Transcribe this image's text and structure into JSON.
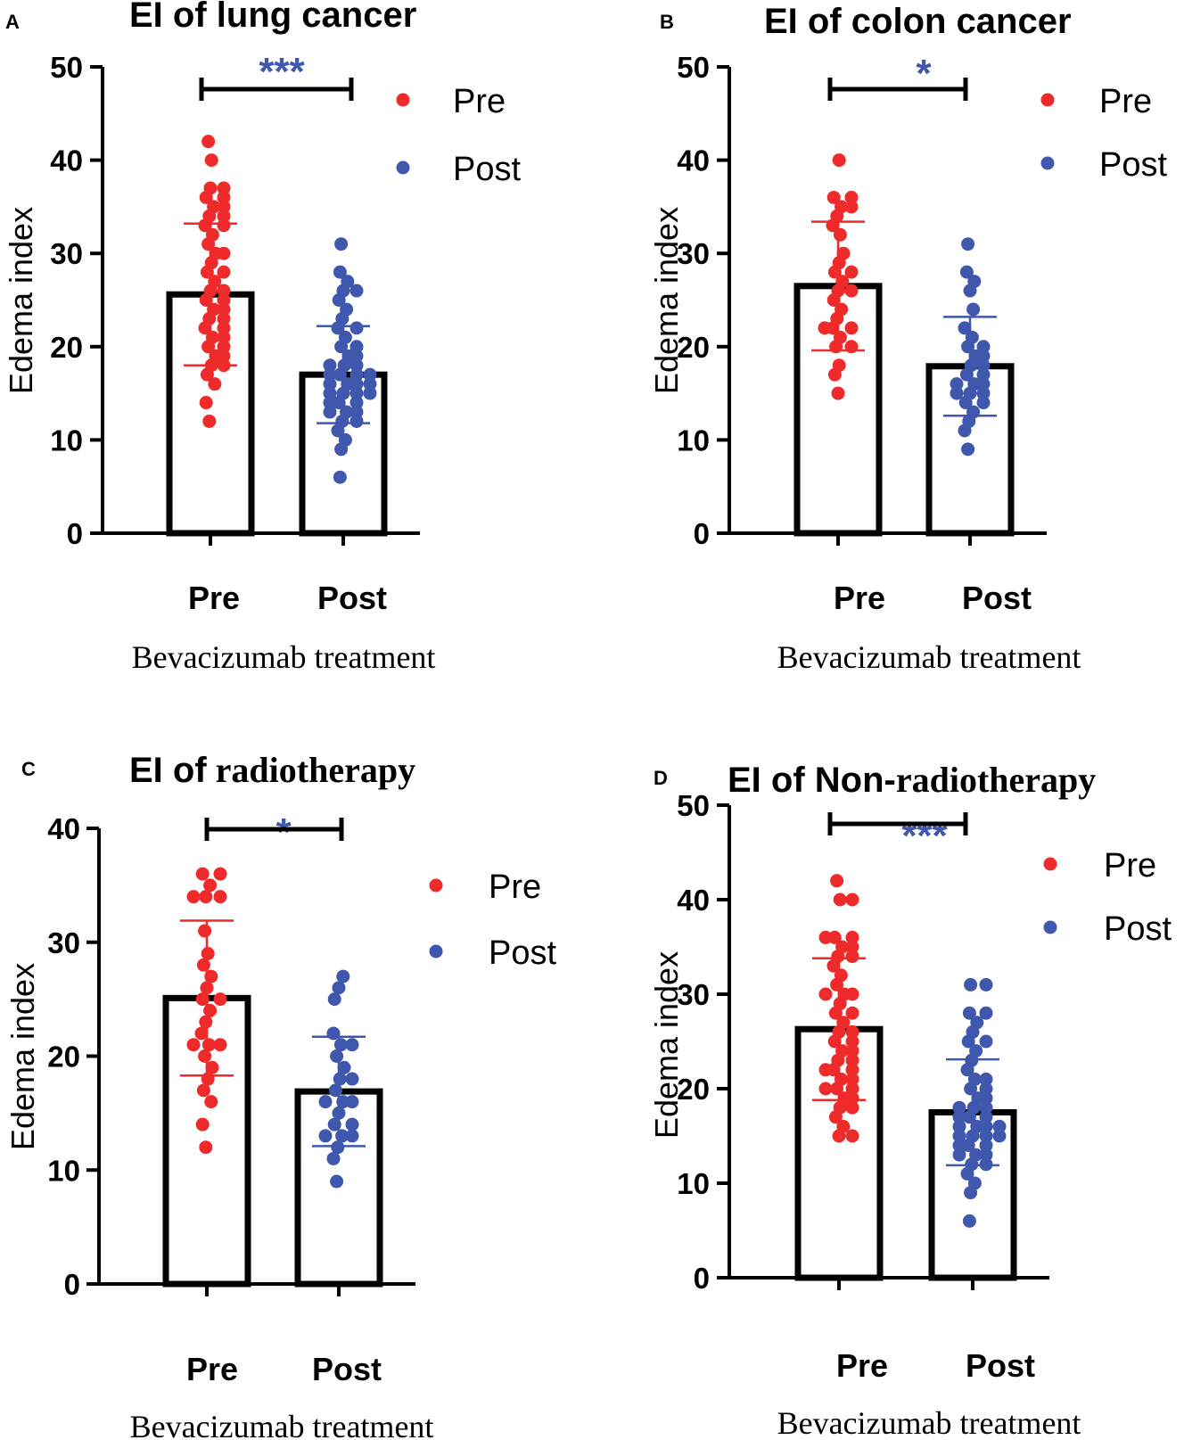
{
  "colors": {
    "pre": "#ee2a2b",
    "post": "#3f57ad",
    "sig": "#3f57ad",
    "axis": "#000000"
  },
  "chart_data": [
    {
      "panel": "A",
      "type": "bar",
      "title": "EI of lung cancer",
      "ylabel": "Edema index",
      "xlabel": "Bevacizumab treatment",
      "ylim": [
        0,
        50
      ],
      "yticks": [
        0,
        10,
        20,
        30,
        40,
        50
      ],
      "categories": [
        "Pre",
        "Post"
      ],
      "means": [
        25.6,
        17.0
      ],
      "sd": [
        7.6,
        5.2
      ],
      "significance": "***",
      "legend": [
        "Pre",
        "Post"
      ],
      "points": [
        [
          42,
          40,
          37,
          37,
          36,
          36,
          35,
          35,
          34,
          34,
          33,
          33,
          32,
          31,
          30,
          30,
          29,
          28,
          28,
          27,
          26,
          26,
          25,
          25,
          24,
          24,
          23,
          23,
          22,
          22,
          21,
          21,
          20,
          20,
          19,
          19,
          18,
          18,
          17,
          16,
          14,
          12
        ],
        [
          31,
          28,
          27,
          26,
          26,
          25,
          24,
          23,
          22,
          22,
          21,
          20,
          20,
          19,
          19,
          18,
          18,
          18,
          17,
          17,
          17,
          17,
          16,
          16,
          16,
          16,
          15,
          15,
          15,
          15,
          14,
          14,
          14,
          13,
          13,
          13,
          12,
          12,
          11,
          10,
          9,
          6
        ]
      ]
    },
    {
      "panel": "B",
      "type": "bar",
      "title": "EI of colon cancer",
      "ylabel": "Edema index",
      "xlabel": "Bevacizumab treatment",
      "ylim": [
        0,
        50
      ],
      "yticks": [
        0,
        10,
        20,
        30,
        40,
        50
      ],
      "categories": [
        "Pre",
        "Post"
      ],
      "means": [
        26.5,
        17.9
      ],
      "sd": [
        6.9,
        5.3
      ],
      "significance": "*",
      "legend": [
        "Pre",
        "Post"
      ],
      "points": [
        [
          40,
          36,
          36,
          35,
          35,
          34,
          33,
          32,
          30,
          29,
          28,
          28,
          27,
          26,
          26,
          25,
          24,
          23,
          22,
          22,
          22,
          21,
          20,
          20,
          18,
          17,
          15
        ],
        [
          31,
          28,
          27,
          26,
          24,
          22,
          21,
          20,
          20,
          19,
          19,
          18,
          18,
          17,
          17,
          16,
          16,
          16,
          15,
          15,
          15,
          14,
          14,
          13,
          12,
          11,
          9
        ]
      ]
    },
    {
      "panel": "C",
      "type": "bar",
      "title_prefix": "EI of",
      "title_suffix": "radiotherapy",
      "ylabel": "Edema index",
      "xlabel": "Bevacizumab treatment",
      "ylim": [
        0,
        40
      ],
      "yticks": [
        0,
        10,
        20,
        30,
        40
      ],
      "categories": [
        "Pre",
        "Post"
      ],
      "means": [
        25.1,
        16.9
      ],
      "sd": [
        6.8,
        4.8
      ],
      "significance": "*",
      "legend": [
        "Pre",
        "Post"
      ],
      "points": [
        [
          36,
          36,
          35,
          34,
          34,
          34,
          31,
          29,
          28,
          27,
          26,
          25,
          25,
          24,
          23,
          22,
          21,
          21,
          21,
          20,
          19,
          18,
          17,
          16,
          14,
          12
        ],
        [
          27,
          26,
          25,
          22,
          21,
          21,
          20,
          19,
          18,
          18,
          17,
          16,
          16,
          16,
          15,
          14,
          14,
          13,
          13,
          13,
          12,
          11,
          9
        ]
      ]
    },
    {
      "panel": "D",
      "type": "bar",
      "title_prefix": "EI of  Non-",
      "title_suffix": "radiotherapy",
      "ylabel": "Edema index",
      "xlabel": "Bevacizumab treatment",
      "ylim": [
        0,
        50
      ],
      "yticks": [
        0,
        10,
        20,
        30,
        40,
        50
      ],
      "categories": [
        "Pre",
        "Post"
      ],
      "means": [
        26.3,
        17.5
      ],
      "sd": [
        7.5,
        5.6
      ],
      "significance": "***",
      "legend": [
        "Pre",
        "Post"
      ],
      "points": [
        [
          42,
          40,
          40,
          36,
          36,
          36,
          35,
          35,
          34,
          34,
          33,
          32,
          31,
          30,
          30,
          30,
          29,
          28,
          28,
          27,
          26,
          26,
          25,
          25,
          24,
          24,
          23,
          23,
          22,
          22,
          22,
          21,
          21,
          20,
          20,
          20,
          19,
          19,
          18,
          18,
          17,
          16,
          15,
          15
        ],
        [
          31,
          31,
          28,
          28,
          27,
          26,
          25,
          25,
          24,
          23,
          22,
          21,
          21,
          20,
          20,
          19,
          19,
          18,
          18,
          18,
          17,
          17,
          17,
          16,
          16,
          16,
          16,
          15,
          15,
          15,
          15,
          14,
          14,
          14,
          13,
          13,
          13,
          12,
          12,
          11,
          10,
          9,
          6
        ]
      ]
    }
  ]
}
